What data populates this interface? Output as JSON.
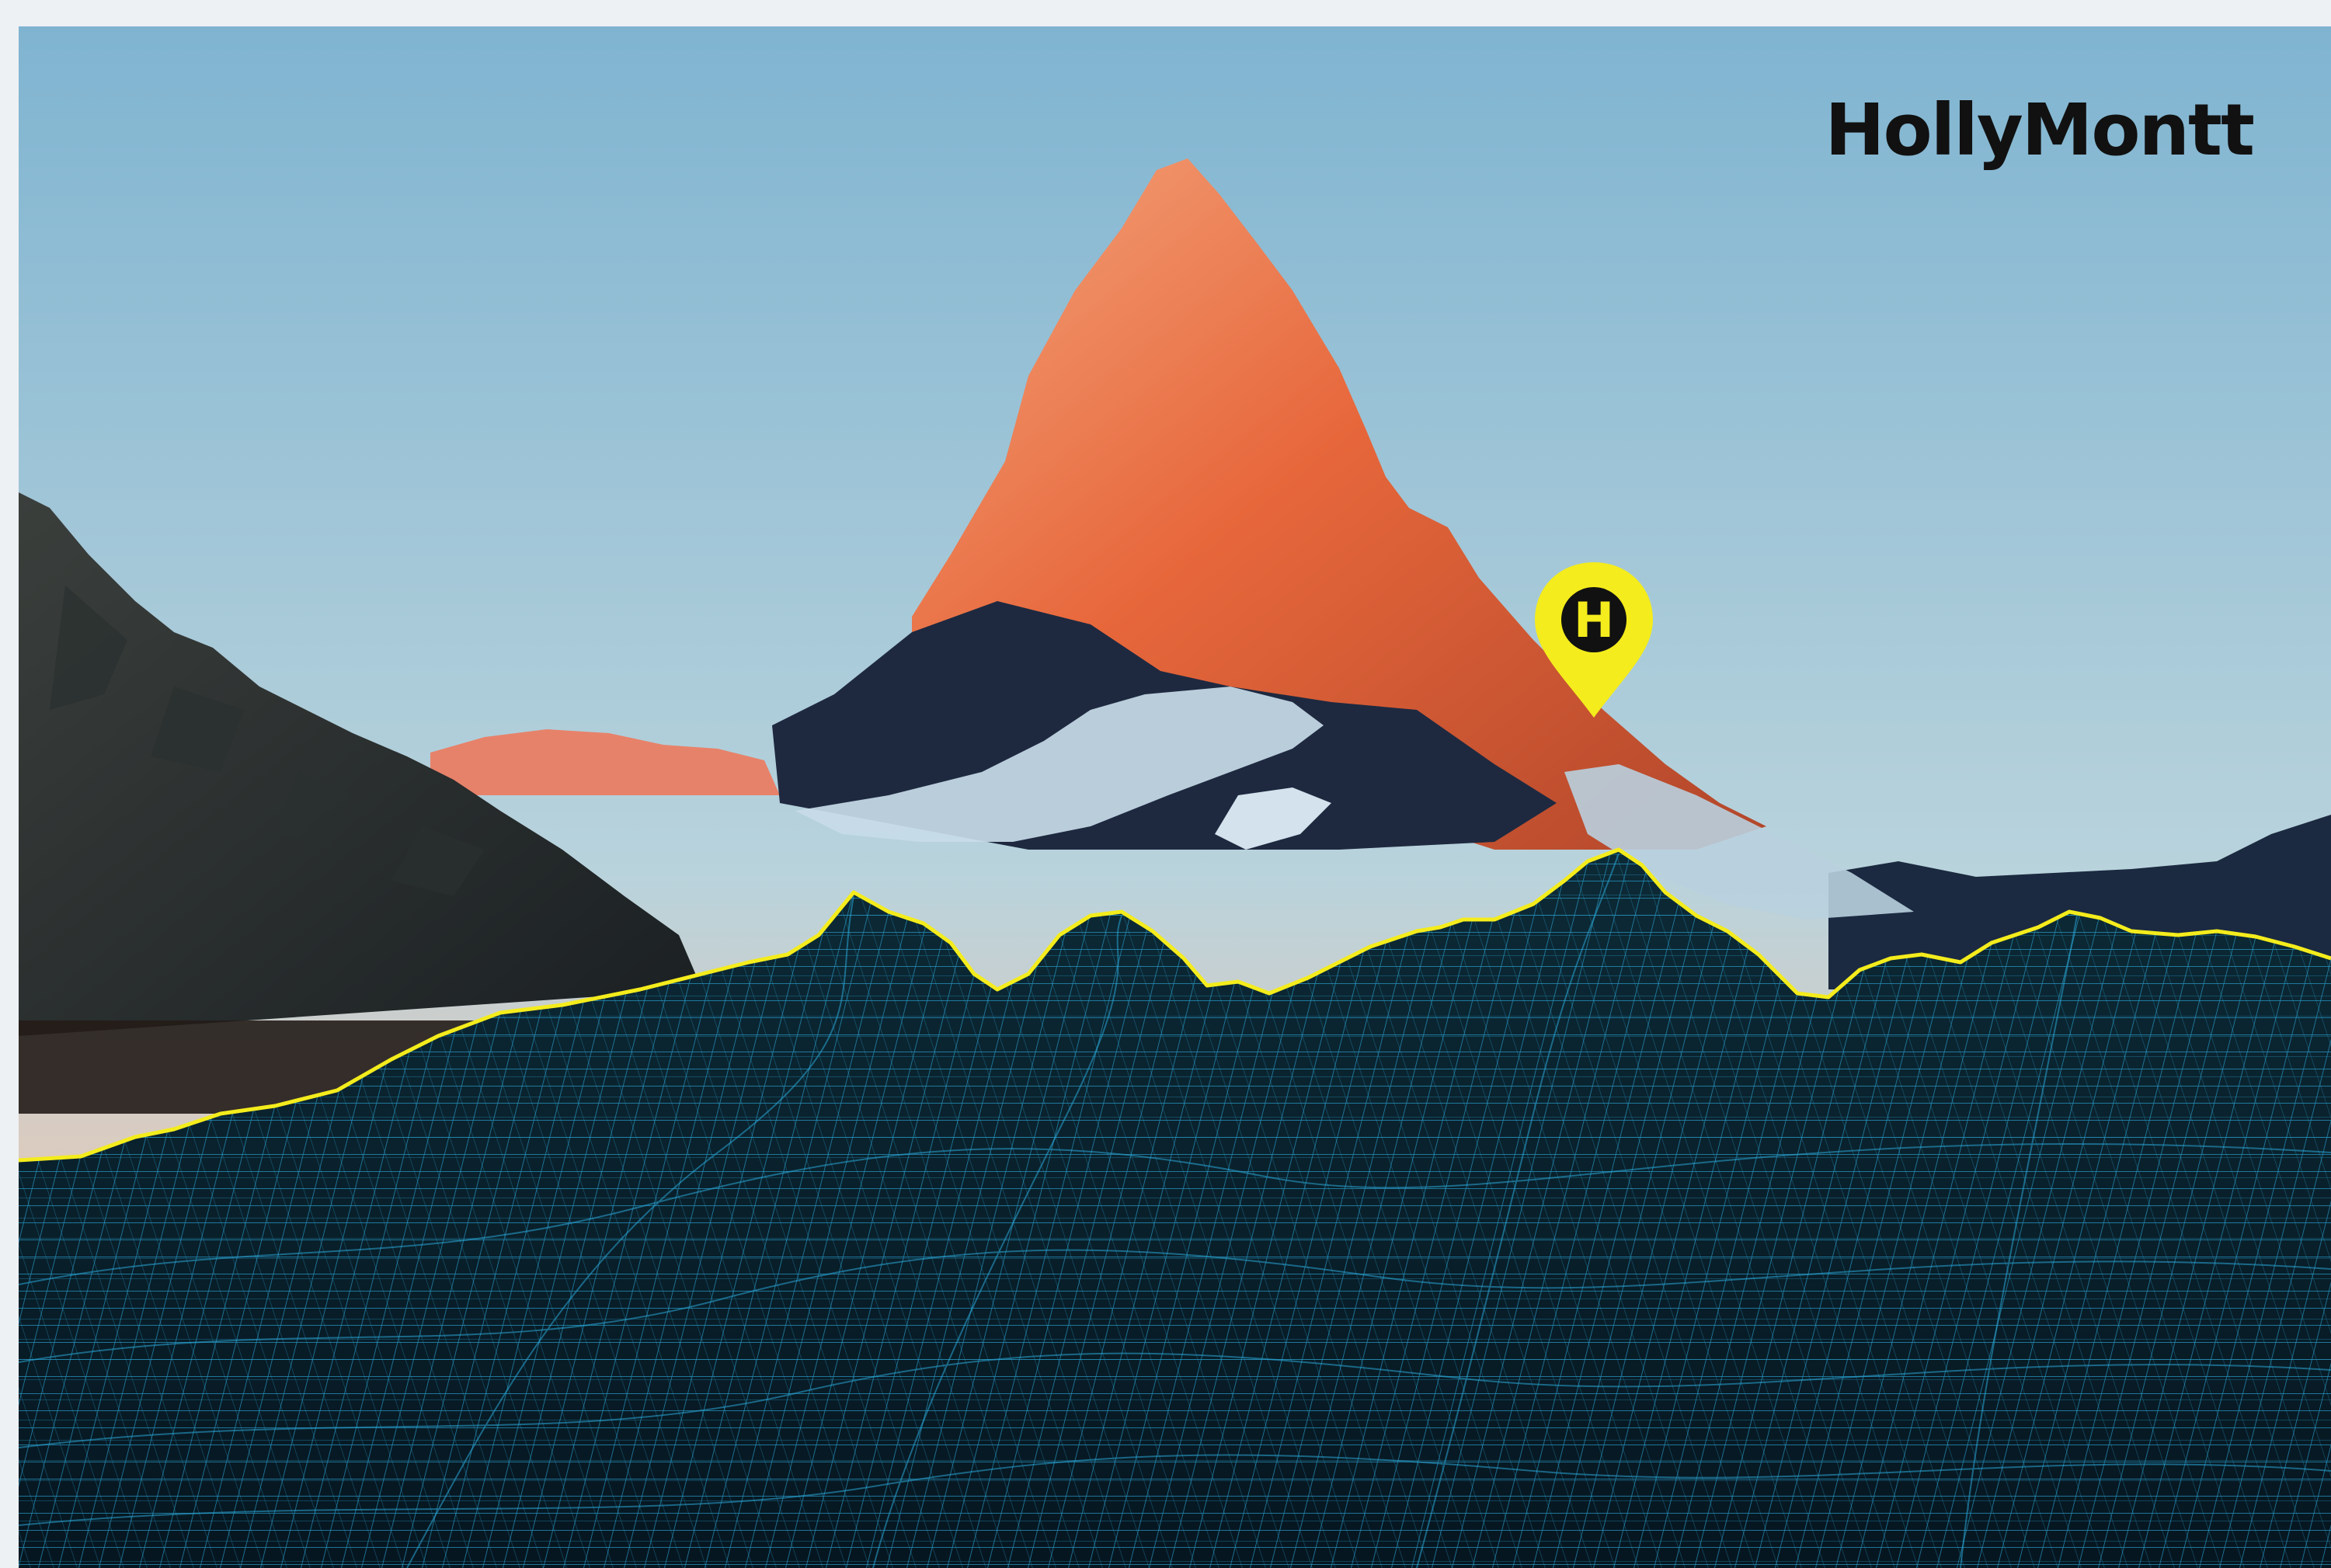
{
  "brand": {
    "name": "HollyMontt",
    "pin_letter": "H"
  },
  "colors": {
    "sky_top": "#8fbad3",
    "sky_horizon": "#f3c0a4",
    "peak_light": "#f07a4a",
    "peak_shadow": "#1d2a3d",
    "snow": "#c9dbe8",
    "ridge_line": "#f4ec1c",
    "wireframe": "#2aa6d6",
    "terrain_fill": "#071822",
    "pin": "#f4ec1c"
  },
  "icons": {
    "pin": "map-pin-icon",
    "terrain": "wireframe-terrain"
  }
}
